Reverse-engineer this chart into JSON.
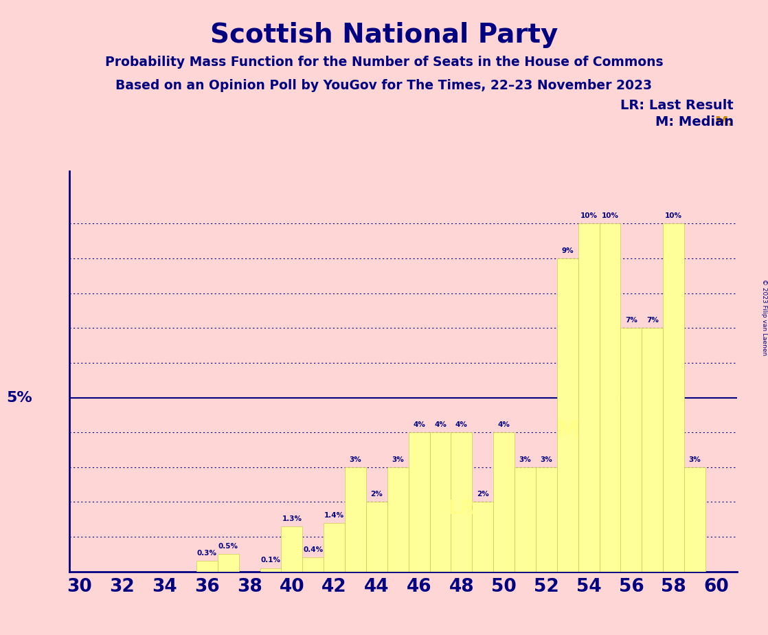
{
  "title": "Scottish National Party",
  "subtitle1": "Probability Mass Function for the Number of Seats in the House of Commons",
  "subtitle2": "Based on an Opinion Poll by YouGov for The Times, 22–23 November 2023",
  "copyright": "© 2023 Filip van Laenen",
  "seats": [
    30,
    31,
    32,
    33,
    34,
    35,
    36,
    37,
    38,
    39,
    40,
    41,
    42,
    43,
    44,
    45,
    46,
    47,
    48,
    49,
    50,
    51,
    52,
    53,
    54,
    55,
    56,
    57,
    58,
    59,
    60
  ],
  "values": [
    0.0,
    0.0,
    0.0,
    0.0,
    0.0,
    0.0,
    0.3,
    0.5,
    0.0,
    0.1,
    1.3,
    0.4,
    1.4,
    3.0,
    2.0,
    3.0,
    4.0,
    4.0,
    4.0,
    2.0,
    4.0,
    3.0,
    3.0,
    9.0,
    10.0,
    10.0,
    7.0,
    7.0,
    10.0,
    3.0,
    0.0
  ],
  "bar_color": "#FFFF99",
  "bar_edge_color": "#CCCC55",
  "median_seat": 53,
  "last_result_seat": 48,
  "background_color": "#FFD6D6",
  "plot_bg_color": "#FFD6D6",
  "title_color": "#000080",
  "axis_color": "#000080",
  "label_color": "#000080",
  "grid_color": "#000080",
  "solid_line_y": 5.0,
  "dotted_lines_y": [
    1,
    2,
    3,
    4,
    6,
    7,
    8,
    9,
    10
  ],
  "xtick_labels": [
    30,
    32,
    34,
    36,
    38,
    40,
    42,
    44,
    46,
    48,
    50,
    52,
    54,
    56,
    58,
    60
  ],
  "ylim": [
    0,
    11.5
  ],
  "lr_label": "LR: Last Result",
  "m_label_prefix": "M:",
  "m_label_suffix": " Median",
  "m_color": "#CC8800"
}
